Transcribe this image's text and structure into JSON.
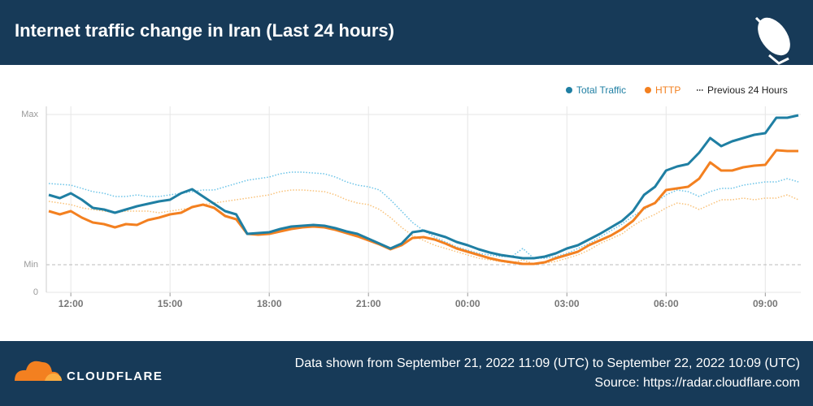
{
  "chart_data": {
    "type": "line",
    "title": "Internet traffic change in Iran (Last 24 hours)",
    "categories": [
      null,
      null,
      "12:00",
      null,
      null,
      null,
      null,
      null,
      null,
      null,
      null,
      "15:00",
      null,
      null,
      null,
      null,
      null,
      null,
      null,
      null,
      "18:00",
      null,
      null,
      null,
      null,
      null,
      null,
      null,
      null,
      "21:00",
      null,
      null,
      null,
      null,
      null,
      null,
      null,
      null,
      "00:00",
      null,
      null,
      null,
      null,
      null,
      null,
      null,
      null,
      "03:00",
      null,
      null,
      null,
      null,
      null,
      null,
      null,
      null,
      "06:00",
      null,
      null,
      null,
      null,
      null,
      null,
      null,
      null,
      "09:00",
      null,
      null,
      null
    ],
    "series": [
      {
        "name": "Total Traffic",
        "color": "#1f7fa3",
        "values": [
          120,
          116,
          122,
          114,
          104,
          102,
          98,
          102,
          106,
          109,
          112,
          114,
          122,
          127,
          118,
          109,
          100,
          96,
          72,
          73,
          74,
          78,
          81,
          82,
          83,
          82,
          79,
          75,
          72,
          66,
          60,
          54,
          60,
          74,
          76,
          72,
          68,
          62,
          58,
          53,
          49,
          46,
          44,
          42,
          42,
          44,
          48,
          54,
          58,
          65,
          72,
          80,
          88,
          100,
          120,
          130,
          150,
          155,
          158,
          172,
          190,
          180,
          186,
          190,
          194,
          196,
          215,
          215,
          218
        ]
      },
      {
        "name": "HTTP",
        "color": "#f38020",
        "values": [
          100,
          96,
          100,
          92,
          86,
          84,
          80,
          84,
          83,
          89,
          92,
          96,
          98,
          105,
          108,
          104,
          94,
          90,
          72,
          71,
          72,
          75,
          78,
          80,
          81,
          80,
          77,
          73,
          69,
          64,
          59,
          53,
          58,
          67,
          68,
          65,
          60,
          54,
          50,
          46,
          42,
          39,
          37,
          35,
          35,
          37,
          42,
          46,
          50,
          58,
          64,
          70,
          78,
          88,
          104,
          110,
          126,
          128,
          130,
          140,
          160,
          150,
          150,
          154,
          156,
          157,
          175,
          174,
          174
        ]
      }
    ],
    "previous": {
      "name": "Previous 24 Hours",
      "series": [
        {
          "color": "#6cc4e8",
          "values": [
            134,
            133,
            132,
            128,
            124,
            122,
            118,
            118,
            120,
            118,
            118,
            120,
            122,
            124,
            126,
            126,
            130,
            134,
            138,
            140,
            142,
            146,
            148,
            148,
            147,
            146,
            142,
            136,
            132,
            130,
            126,
            114,
            100,
            86,
            76,
            68,
            62,
            56,
            52,
            48,
            46,
            44,
            44,
            54,
            42,
            42,
            44,
            48,
            54,
            60,
            68,
            76,
            84,
            94,
            102,
            110,
            120,
            126,
            124,
            118,
            124,
            128,
            128,
            132,
            134,
            136,
            136,
            140,
            136
          ]
        },
        {
          "color": "#f9c27a",
          "values": [
            112,
            110,
            108,
            104,
            102,
            100,
            98,
            100,
            100,
            100,
            98,
            100,
            102,
            104,
            108,
            110,
            112,
            114,
            116,
            118,
            120,
            124,
            126,
            126,
            125,
            124,
            120,
            114,
            110,
            108,
            102,
            92,
            80,
            70,
            64,
            58,
            54,
            50,
            46,
            42,
            40,
            38,
            36,
            40,
            35,
            36,
            38,
            42,
            46,
            52,
            60,
            66,
            72,
            82,
            90,
            96,
            104,
            110,
            108,
            102,
            108,
            114,
            114,
            116,
            114,
            116,
            116,
            120,
            114
          ]
        }
      ]
    },
    "ylim": [
      0,
      219
    ],
    "yticks": [
      0,
      {
        "value": 34,
        "label": "Min"
      },
      {
        "value": 219,
        "label": "Max"
      }
    ],
    "grid": true
  },
  "footer": {
    "brand": "CLOUDFLARE",
    "date_range": "Data shown from September 21, 2022 11:09 (UTC) to September 22, 2022 10:09 (UTC)",
    "source": "Source: https://radar.cloudflare.com"
  }
}
